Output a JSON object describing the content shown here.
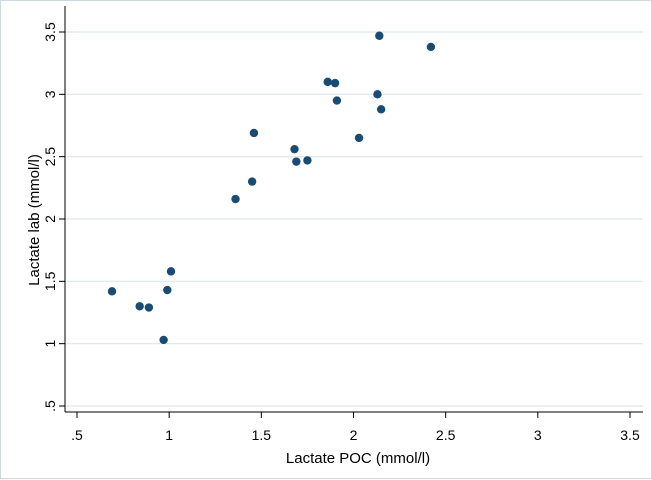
{
  "chart_data": {
    "type": "scatter",
    "title": "",
    "xlabel": "Lactate POC (mmol/l)",
    "ylabel": "Lactate lab (mmol/l)",
    "xlim": [
      0.5,
      3.5
    ],
    "ylim": [
      0.5,
      3.5
    ],
    "x_ticks": [
      ".5",
      "1",
      "1.5",
      "2",
      "2.5",
      "3",
      "3.5"
    ],
    "y_ticks": [
      ".5",
      "1",
      "1.5",
      "2",
      "2.5",
      "3",
      "3.5"
    ],
    "grid": true,
    "marker_color": "#1a4b73",
    "grid_color": "#dde7ea",
    "points": [
      {
        "x": 0.69,
        "y": 1.42
      },
      {
        "x": 0.84,
        "y": 1.3
      },
      {
        "x": 0.89,
        "y": 1.29
      },
      {
        "x": 0.97,
        "y": 1.03
      },
      {
        "x": 0.99,
        "y": 1.43
      },
      {
        "x": 1.01,
        "y": 1.58
      },
      {
        "x": 1.36,
        "y": 2.16
      },
      {
        "x": 1.45,
        "y": 2.3
      },
      {
        "x": 1.46,
        "y": 2.69
      },
      {
        "x": 1.68,
        "y": 2.56
      },
      {
        "x": 1.69,
        "y": 2.46
      },
      {
        "x": 1.75,
        "y": 2.47
      },
      {
        "x": 1.86,
        "y": 3.1
      },
      {
        "x": 1.9,
        "y": 3.09
      },
      {
        "x": 1.91,
        "y": 2.95
      },
      {
        "x": 2.03,
        "y": 2.65
      },
      {
        "x": 2.13,
        "y": 3.0
      },
      {
        "x": 2.14,
        "y": 3.47
      },
      {
        "x": 2.15,
        "y": 2.88
      },
      {
        "x": 2.42,
        "y": 3.38
      }
    ]
  }
}
